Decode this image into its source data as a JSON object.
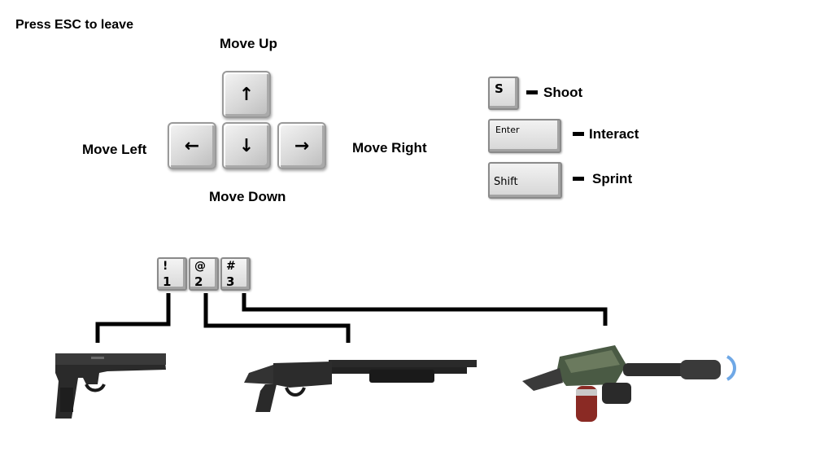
{
  "hint": "Press ESC to leave",
  "movement": {
    "up_label": "Move Up",
    "down_label": "Move Down",
    "left_label": "Move Left",
    "right_label": "Move Right",
    "up_glyph": "↑",
    "down_glyph": "↓",
    "left_glyph": "←",
    "right_glyph": "→"
  },
  "actions": [
    {
      "key": "S",
      "label": "Shoot"
    },
    {
      "key": "Enter",
      "label": "Interact"
    },
    {
      "key": "Shift",
      "label": "Sprint"
    }
  ],
  "weapon_keys": [
    {
      "symbol": "!",
      "number": "1"
    },
    {
      "symbol": "@",
      "number": "2"
    },
    {
      "symbol": "#",
      "number": "3"
    }
  ],
  "weapons": [
    {
      "icon": "pistol-icon"
    },
    {
      "icon": "shotgun-icon"
    },
    {
      "icon": "energy-gun-icon"
    }
  ],
  "colors": {
    "background": "#ffffff",
    "text": "#000000",
    "connector": "#000000"
  }
}
